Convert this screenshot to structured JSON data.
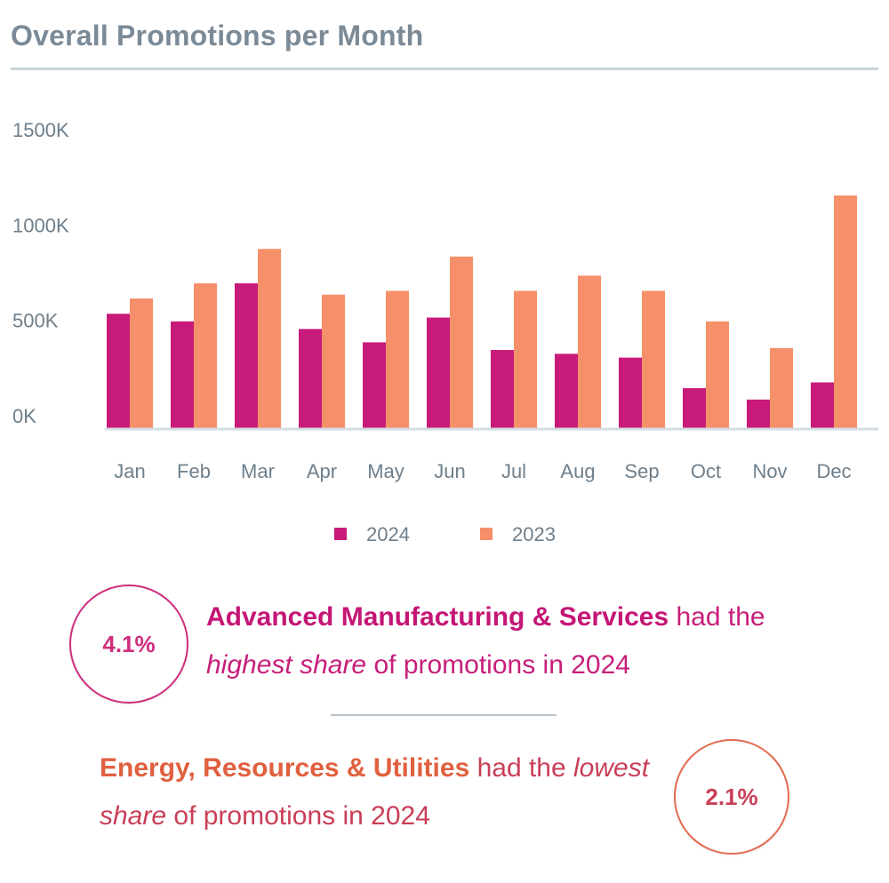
{
  "title": "Overall Promotions per Month",
  "colors": {
    "series_2024": "#c81a7a",
    "series_2023": "#f6906a",
    "axis": "#d3dde4"
  },
  "chart_data": {
    "type": "bar",
    "categories": [
      "Jan",
      "Feb",
      "Mar",
      "Apr",
      "May",
      "Jun",
      "Jul",
      "Aug",
      "Sep",
      "Oct",
      "Nov",
      "Dec"
    ],
    "series": [
      {
        "name": "2024",
        "values": [
          600000,
          560000,
          760000,
          520000,
          450000,
          580000,
          410000,
          390000,
          370000,
          210000,
          150000,
          240000
        ]
      },
      {
        "name": "2023",
        "values": [
          680000,
          760000,
          940000,
          700000,
          720000,
          900000,
          720000,
          800000,
          720000,
          560000,
          420000,
          1220000
        ]
      }
    ],
    "y_ticks": [
      "0K",
      "500K",
      "1000K",
      "1500K"
    ],
    "ylim": [
      0,
      1500000
    ],
    "legend": [
      "2024",
      "2023"
    ],
    "legend_position": "bottom-center",
    "grid": false
  },
  "stat1": {
    "value": "4.1%",
    "strong": "Advanced Manufacturing & Services",
    "text_a": " had the ",
    "em": "highest share",
    "text_b": " of promotions in 2024"
  },
  "stat2": {
    "value": "2.1%",
    "strong": "Energy, Resources & Utilities",
    "text_a": " had the ",
    "em": "lowest share",
    "text_b": " of promotions in 2024"
  }
}
